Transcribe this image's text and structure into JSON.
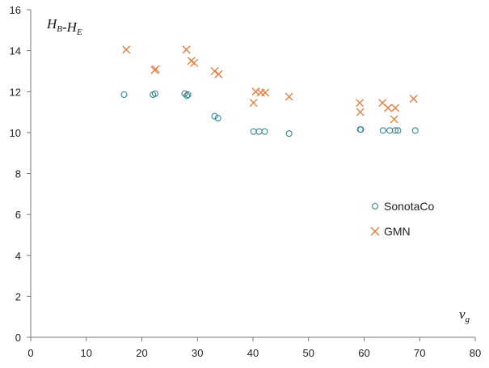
{
  "chart_data": {
    "type": "scatter",
    "title": "",
    "xlabel": {
      "base": "v",
      "sub": "g"
    },
    "ylabel": {
      "parts": [
        {
          "base": "H",
          "sub": "B"
        },
        {
          "base": "-H",
          "sub": "E"
        }
      ]
    },
    "xlim": [
      0,
      80
    ],
    "ylim": [
      0,
      16
    ],
    "xticks": [
      0,
      10,
      20,
      30,
      40,
      50,
      60,
      70,
      80
    ],
    "yticks": [
      0,
      2,
      4,
      6,
      8,
      10,
      12,
      14,
      16
    ],
    "grid": false,
    "legend_position": "right-middle",
    "series": [
      {
        "name": "SonotaCo",
        "marker": "circle",
        "color": "#2e7d8c",
        "x": [
          16.8,
          22.0,
          22.4,
          27.7,
          28.1,
          28.3,
          33.1,
          33.7,
          40.1,
          41.1,
          42.1,
          46.5,
          59.3,
          59.4,
          63.4,
          64.6,
          65.6,
          66.1,
          69.2
        ],
        "y": [
          11.85,
          11.85,
          11.9,
          11.9,
          11.8,
          11.85,
          10.8,
          10.7,
          10.05,
          10.05,
          10.05,
          9.95,
          10.15,
          10.15,
          10.1,
          10.1,
          10.1,
          10.1,
          10.1
        ]
      },
      {
        "name": "GMN",
        "marker": "x",
        "color": "#e8793a",
        "x": [
          17.2,
          22.3,
          22.5,
          28.0,
          28.9,
          29.4,
          33.1,
          33.8,
          40.1,
          40.5,
          41.4,
          42.2,
          46.5,
          59.2,
          59.3,
          63.3,
          64.3,
          65.4,
          65.6,
          68.9
        ],
        "y": [
          14.05,
          13.05,
          13.1,
          14.05,
          13.5,
          13.4,
          13.0,
          12.85,
          11.45,
          12.0,
          11.95,
          11.95,
          11.75,
          11.45,
          11.0,
          11.45,
          11.2,
          10.65,
          11.2,
          11.65
        ]
      }
    ]
  }
}
